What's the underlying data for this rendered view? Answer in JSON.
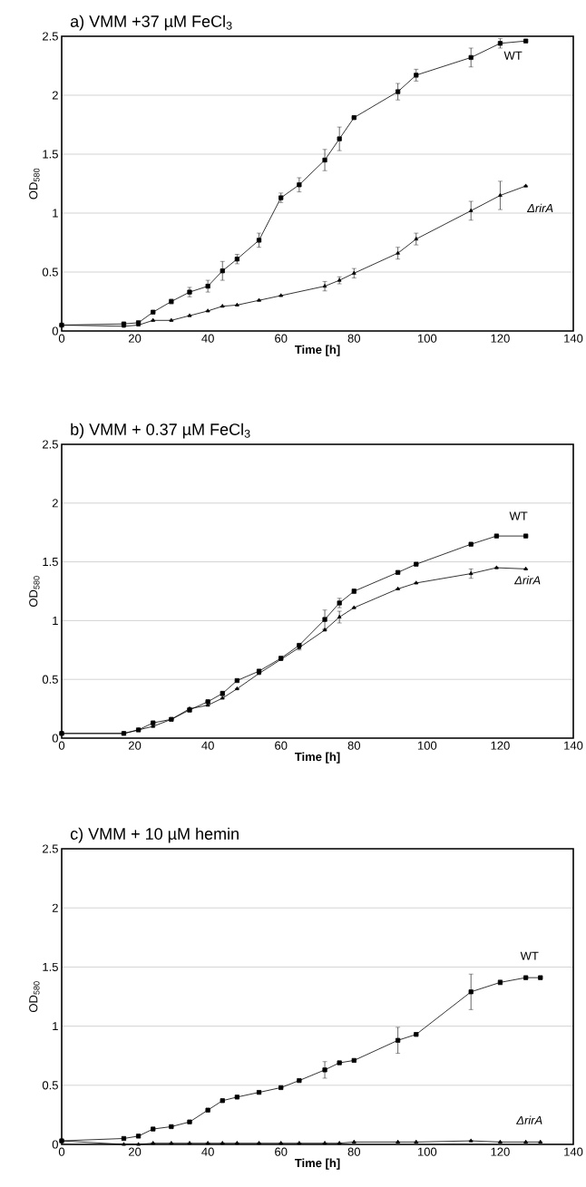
{
  "chart_data": [
    {
      "type": "line",
      "title": "a) VMM +37 µM FeCl$_{3}$",
      "xlabel": "Time [h]",
      "ylabel": "OD$_{580}$",
      "xlim": [
        0,
        140
      ],
      "ylim": [
        0,
        2.5
      ],
      "xticks": [
        0,
        20,
        40,
        60,
        80,
        100,
        120,
        140
      ],
      "yticks": [
        0,
        0.5,
        1,
        1.5,
        2,
        2.5
      ],
      "grid": "y",
      "line_style": "solid",
      "series": [
        {
          "name": "WT",
          "color": "#000000",
          "marker": "square",
          "x": [
            0,
            17,
            21,
            25,
            30,
            35,
            40,
            44,
            48,
            54,
            60,
            65,
            72,
            76,
            80,
            92,
            97,
            112,
            120,
            127
          ],
          "values": [
            0.05,
            0.06,
            0.07,
            0.16,
            0.25,
            0.33,
            0.38,
            0.51,
            0.61,
            0.77,
            1.13,
            1.24,
            1.45,
            1.63,
            1.81,
            2.03,
            2.17,
            2.32,
            2.44,
            2.46
          ],
          "errors": [
            null,
            null,
            null,
            null,
            0.02,
            0.04,
            0.05,
            0.08,
            0.04,
            0.06,
            0.04,
            0.06,
            0.09,
            0.1,
            null,
            0.07,
            0.05,
            0.08,
            0.04,
            null
          ]
        },
        {
          "name": "ΔrirA",
          "color": "#000000",
          "marker": "triangle",
          "x": [
            0,
            17,
            21,
            25,
            30,
            35,
            40,
            44,
            48,
            54,
            60,
            72,
            76,
            80,
            92,
            97,
            112,
            120,
            127
          ],
          "values": [
            0.05,
            0.04,
            0.05,
            0.09,
            0.09,
            0.13,
            0.17,
            0.21,
            0.22,
            0.26,
            0.3,
            0.38,
            0.43,
            0.49,
            0.66,
            0.78,
            1.02,
            1.15,
            1.23
          ],
          "errors": [
            null,
            null,
            null,
            null,
            null,
            null,
            null,
            null,
            null,
            null,
            null,
            0.04,
            0.03,
            0.04,
            0.05,
            0.05,
            0.08,
            0.12,
            null
          ]
        }
      ]
    },
    {
      "type": "line",
      "title": "b) VMM + 0.37 µM FeCl$_{3}$",
      "xlabel": "Time [h]",
      "ylabel": "OD$_{580}$",
      "xlim": [
        0,
        140
      ],
      "ylim": [
        0,
        2.5
      ],
      "xticks": [
        0,
        20,
        40,
        60,
        80,
        100,
        120,
        140
      ],
      "yticks": [
        0,
        0.5,
        1,
        1.5,
        2,
        2.5
      ],
      "grid": "y",
      "line_style": "solid",
      "series": [
        {
          "name": "WT",
          "color": "#000000",
          "marker": "square",
          "x": [
            0,
            17,
            21,
            25,
            30,
            35,
            40,
            44,
            48,
            54,
            60,
            65,
            72,
            76,
            80,
            92,
            97,
            112,
            119,
            127
          ],
          "values": [
            0.04,
            0.04,
            0.07,
            0.13,
            0.16,
            0.24,
            0.31,
            0.38,
            0.49,
            0.57,
            0.68,
            0.79,
            1.01,
            1.15,
            1.25,
            1.41,
            1.48,
            1.65,
            1.72,
            1.72
          ],
          "errors": [
            null,
            null,
            null,
            null,
            null,
            0.02,
            null,
            0.02,
            null,
            null,
            null,
            null,
            0.08,
            0.04,
            0.02,
            null,
            null,
            null,
            null,
            null
          ]
        },
        {
          "name": "ΔrirA",
          "color": "#000000",
          "marker": "triangle",
          "x": [
            0,
            17,
            21,
            25,
            30,
            35,
            40,
            44,
            48,
            54,
            60,
            65,
            72,
            76,
            80,
            92,
            97,
            112,
            119,
            127
          ],
          "values": [
            0.04,
            0.04,
            0.07,
            0.1,
            0.16,
            0.25,
            0.28,
            0.34,
            0.42,
            0.55,
            0.67,
            0.77,
            0.92,
            1.03,
            1.11,
            1.27,
            1.32,
            1.4,
            1.45,
            1.44
          ],
          "errors": [
            null,
            null,
            null,
            null,
            null,
            null,
            null,
            null,
            null,
            null,
            null,
            0.02,
            null,
            0.05,
            null,
            null,
            null,
            0.04,
            null,
            null
          ]
        }
      ]
    },
    {
      "type": "line",
      "title": "c) VMM + 10 µM  hemin",
      "xlabel": "Time [h]",
      "ylabel": "OD$_{580}$",
      "xlim": [
        0,
        140
      ],
      "ylim": [
        0,
        2.5
      ],
      "xticks": [
        0,
        20,
        40,
        60,
        80,
        100,
        120,
        140
      ],
      "yticks": [
        0,
        0.5,
        1,
        1.5,
        2,
        2.5
      ],
      "grid": "y",
      "line_style": "solid",
      "series": [
        {
          "name": "WT",
          "color": "#000000",
          "marker": "square",
          "x": [
            0,
            17,
            21,
            25,
            30,
            35,
            40,
            44,
            48,
            54,
            60,
            65,
            72,
            76,
            80,
            92,
            97,
            112,
            120,
            127,
            131
          ],
          "values": [
            0.03,
            0.05,
            0.07,
            0.13,
            0.15,
            0.19,
            0.29,
            0.37,
            0.4,
            0.44,
            0.48,
            0.54,
            0.63,
            0.69,
            0.71,
            0.88,
            0.93,
            1.29,
            1.37,
            1.41,
            1.41
          ],
          "errors": [
            null,
            null,
            null,
            null,
            null,
            null,
            null,
            null,
            null,
            null,
            null,
            null,
            0.07,
            null,
            null,
            0.11,
            null,
            0.15,
            0.02,
            null,
            null
          ]
        },
        {
          "name": "ΔrirA",
          "color": "#000000",
          "marker": "triangle",
          "x": [
            0,
            17,
            21,
            25,
            30,
            35,
            40,
            44,
            48,
            54,
            60,
            65,
            72,
            76,
            80,
            92,
            97,
            112,
            120,
            127,
            131
          ],
          "values": [
            0.03,
            0.0,
            0.0,
            0.01,
            0.01,
            0.01,
            0.01,
            0.01,
            0.01,
            0.01,
            0.01,
            0.01,
            0.01,
            0.01,
            0.02,
            0.02,
            0.02,
            0.03,
            0.02,
            0.02,
            0.02
          ],
          "errors": [
            null,
            null,
            null,
            null,
            null,
            null,
            null,
            null,
            null,
            null,
            null,
            null,
            null,
            null,
            null,
            null,
            null,
            null,
            null,
            null,
            null
          ]
        }
      ]
    }
  ]
}
